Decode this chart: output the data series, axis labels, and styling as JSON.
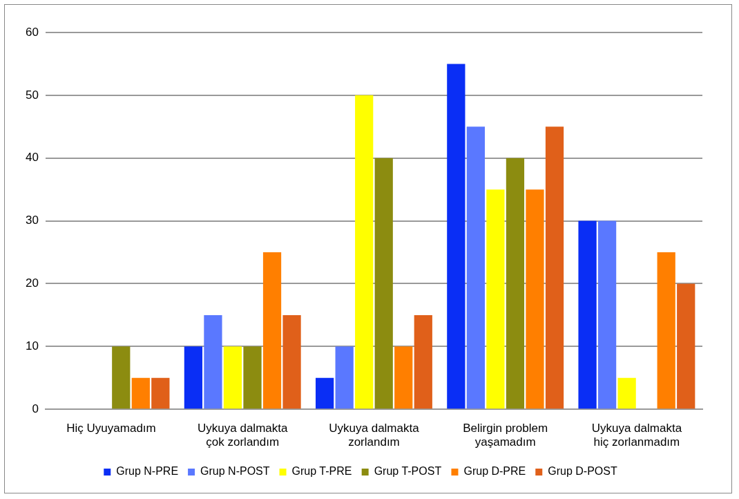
{
  "chart_data": {
    "type": "bar",
    "categories": [
      "Hiç Uyuyamadım",
      "Uykuya dalmakta çok zorlandım",
      "Uykuya dalmakta zorlandım",
      "Belirgin problem yaşamadım",
      "Uykuya dalmakta hiç zorlanmadım"
    ],
    "series": [
      {
        "name": "Grup N-PRE",
        "color": "#0a2ef5",
        "values": [
          0,
          10,
          5,
          55,
          30
        ]
      },
      {
        "name": "Grup N-POST",
        "color": "#5a78ff",
        "values": [
          0,
          15,
          10,
          45,
          30
        ]
      },
      {
        "name": "Grup T-PRE",
        "color": "#ffff00",
        "values": [
          0,
          10,
          50,
          35,
          5
        ]
      },
      {
        "name": "Grup T-POST",
        "color": "#8c8c10",
        "values": [
          10,
          10,
          40,
          40,
          0
        ]
      },
      {
        "name": "Grup D-PRE",
        "color": "#ff7f00",
        "values": [
          5,
          25,
          10,
          35,
          25
        ]
      },
      {
        "name": "Grup D-POST",
        "color": "#e0601a",
        "values": [
          5,
          15,
          15,
          45,
          20
        ]
      }
    ],
    "ylim": [
      0,
      60
    ],
    "yticks": [
      0,
      10,
      20,
      30,
      40,
      50,
      60
    ],
    "grid": "y",
    "legend": "bottom"
  }
}
